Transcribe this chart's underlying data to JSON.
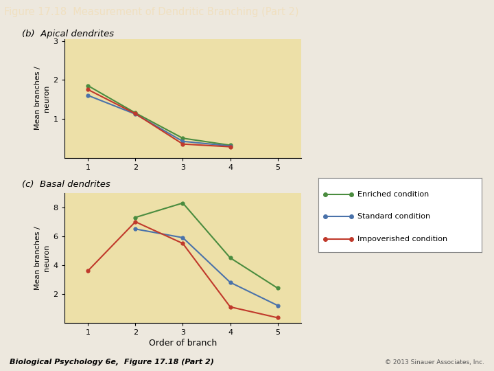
{
  "title": "Figure 17.18  Measurement of Dendritic Branching (Part 2)",
  "title_bg": "#8B3A2A",
  "title_color": "#F0E0C0",
  "fig_bg": "#EDE8DE",
  "plot_bg": "#EDE0A8",
  "label_a": "(b)  Apical dendrites",
  "label_b": "(c)  Basal dendrites",
  "xlabel": "Order of branch",
  "ylabel_top": "Mean branches /\nneuron",
  "ylabel_bot": "Mean branches /\nneuron",
  "x": [
    1,
    2,
    3,
    4,
    5
  ],
  "apical": {
    "enriched": [
      1.85,
      1.15,
      0.5,
      0.32,
      null
    ],
    "standard": [
      1.6,
      1.12,
      0.42,
      0.3,
      null
    ],
    "impoverished": [
      1.75,
      1.13,
      0.35,
      0.28,
      null
    ]
  },
  "basal": {
    "enriched": [
      null,
      7.3,
      8.3,
      4.5,
      2.4
    ],
    "standard": [
      null,
      6.5,
      5.9,
      2.8,
      1.2
    ],
    "impoverished": [
      3.6,
      7.0,
      5.5,
      1.1,
      0.35
    ]
  },
  "colors": {
    "enriched": "#4A8C3F",
    "standard": "#4A72AA",
    "impoverished": "#C0392B"
  },
  "legend_labels": [
    "Enriched condition",
    "Standard condition",
    "Impoverished condition"
  ],
  "footer_left": "Biological Psychology 6e,  Figure 17.18 (Part 2)",
  "footer_right": "© 2013 Sinauer Associates, Inc."
}
